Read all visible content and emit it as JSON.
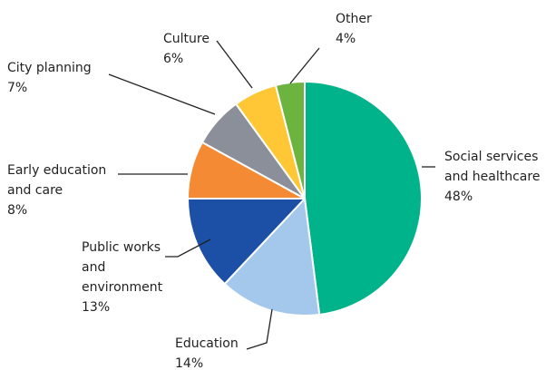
{
  "chart_data": {
    "type": "pie",
    "title": "",
    "slices": [
      {
        "label_lines": [
          "Social services",
          "and healthcare"
        ],
        "value": 48,
        "value_label": "48%",
        "color": "#00B38A"
      },
      {
        "label_lines": [
          "Education"
        ],
        "value": 14,
        "value_label": "14%",
        "color": "#A3C8EC"
      },
      {
        "label_lines": [
          "Public works",
          "and",
          "environment"
        ],
        "value": 13,
        "value_label": "13%",
        "color": "#1C4FA6"
      },
      {
        "label_lines": [
          "Early education",
          "and care"
        ],
        "value": 8,
        "value_label": "8%",
        "color": "#F58A35"
      },
      {
        "label_lines": [
          "City planning"
        ],
        "value": 7,
        "value_label": "7%",
        "color": "#8A8F99"
      },
      {
        "label_lines": [
          "Culture"
        ],
        "value": 6,
        "value_label": "6%",
        "color": "#FFC736"
      },
      {
        "label_lines": [
          "Other"
        ],
        "value": 4,
        "value_label": "4%",
        "color": "#6DB33F"
      }
    ],
    "start_angle_deg": 0,
    "direction": "clockwise",
    "legend": "none"
  }
}
